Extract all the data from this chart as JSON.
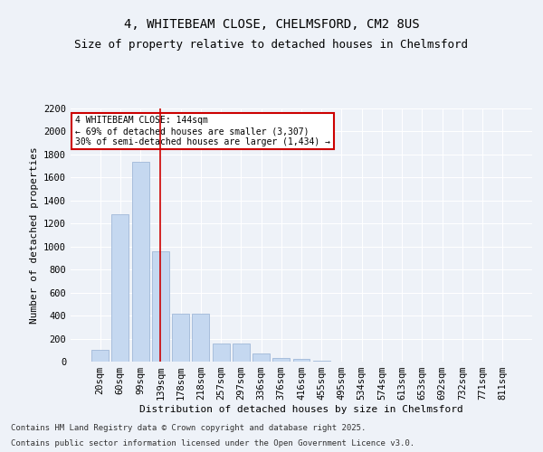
{
  "title_line1": "4, WHITEBEAM CLOSE, CHELMSFORD, CM2 8US",
  "title_line2": "Size of property relative to detached houses in Chelmsford",
  "xlabel": "Distribution of detached houses by size in Chelmsford",
  "ylabel": "Number of detached properties",
  "categories": [
    "20sqm",
    "60sqm",
    "99sqm",
    "139sqm",
    "178sqm",
    "218sqm",
    "257sqm",
    "297sqm",
    "336sqm",
    "376sqm",
    "416sqm",
    "455sqm",
    "495sqm",
    "534sqm",
    "574sqm",
    "613sqm",
    "653sqm",
    "692sqm",
    "732sqm",
    "771sqm",
    "811sqm"
  ],
  "values": [
    100,
    1280,
    1740,
    960,
    415,
    415,
    160,
    160,
    70,
    35,
    20,
    8,
    0,
    0,
    0,
    0,
    0,
    0,
    0,
    0,
    0
  ],
  "bar_color": "#c5d8f0",
  "bar_edge_color": "#a0b8d8",
  "vline_x_index": 3,
  "vline_color": "#cc0000",
  "ylim_max": 2200,
  "yticks": [
    0,
    200,
    400,
    600,
    800,
    1000,
    1200,
    1400,
    1600,
    1800,
    2000,
    2200
  ],
  "annotation_text": "4 WHITEBEAM CLOSE: 144sqm\n← 69% of detached houses are smaller (3,307)\n30% of semi-detached houses are larger (1,434) →",
  "annotation_box_color": "#cc0000",
  "footer_line1": "Contains HM Land Registry data © Crown copyright and database right 2025.",
  "footer_line2": "Contains public sector information licensed under the Open Government Licence v3.0.",
  "bg_color": "#eef2f8",
  "grid_color": "#ffffff",
  "title_fontsize": 10,
  "subtitle_fontsize": 9,
  "axis_label_fontsize": 8,
  "tick_fontsize": 7.5,
  "annotation_fontsize": 7,
  "footer_fontsize": 6.5
}
